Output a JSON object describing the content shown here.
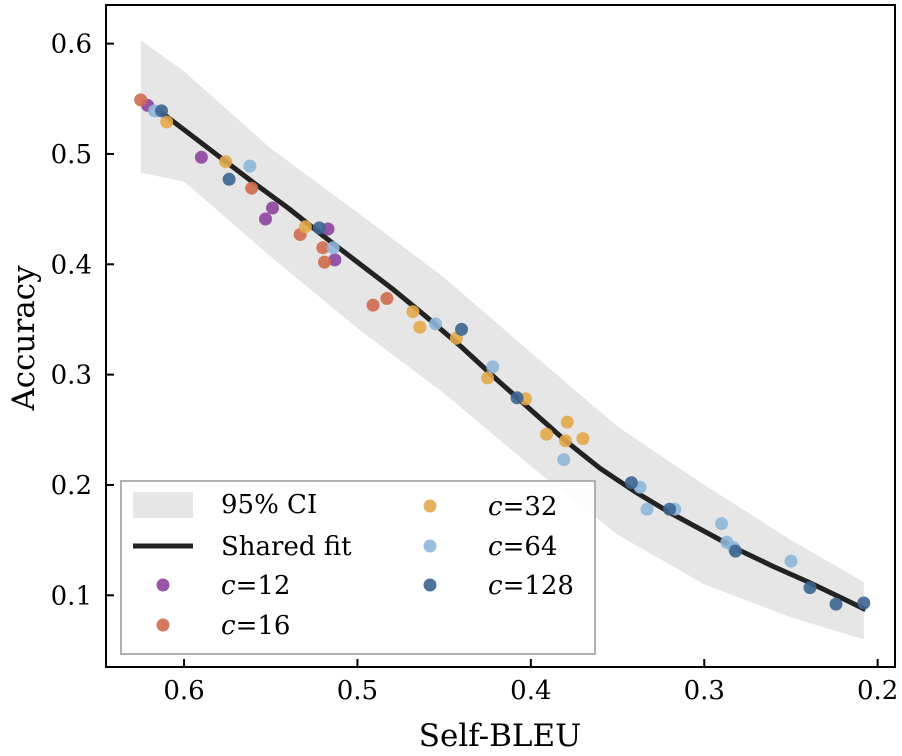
{
  "chart_data": {
    "type": "scatter",
    "xlabel": "Self-BLEU",
    "ylabel": "Accuracy",
    "xlim": [
      0.645,
      0.19
    ],
    "ylim": [
      0.035,
      0.635
    ],
    "x_inverted": true,
    "xticks": [
      0.6,
      0.5,
      0.4,
      0.3,
      0.2
    ],
    "xtick_labels": [
      "0.6",
      "0.5",
      "0.4",
      "0.3",
      "0.2"
    ],
    "yticks": [
      0.1,
      0.2,
      0.3,
      0.4,
      0.5,
      0.6
    ],
    "ytick_labels": [
      "0.1",
      "0.2",
      "0.3",
      "0.4",
      "0.5",
      "0.6"
    ],
    "grid": false,
    "legend_position": "lower-left",
    "confidence_band": {
      "name": "95% CI",
      "color": "#e6e6e6",
      "x": [
        0.625,
        0.6,
        0.55,
        0.5,
        0.45,
        0.4,
        0.35,
        0.3,
        0.25,
        0.208
      ],
      "upper": [
        0.603,
        0.575,
        0.505,
        0.447,
        0.388,
        0.32,
        0.253,
        0.2,
        0.15,
        0.112
      ],
      "lower": [
        0.483,
        0.475,
        0.407,
        0.342,
        0.283,
        0.217,
        0.155,
        0.11,
        0.08,
        0.06
      ]
    },
    "fit": {
      "name": "Shared fit",
      "color": "#222222",
      "x": [
        0.615,
        0.6,
        0.58,
        0.56,
        0.54,
        0.52,
        0.5,
        0.48,
        0.46,
        0.44,
        0.42,
        0.4,
        0.38,
        0.36,
        0.34,
        0.32,
        0.3,
        0.28,
        0.26,
        0.24,
        0.22,
        0.207
      ],
      "y": [
        0.54,
        0.522,
        0.498,
        0.474,
        0.451,
        0.426,
        0.402,
        0.378,
        0.352,
        0.325,
        0.296,
        0.268,
        0.24,
        0.215,
        0.194,
        0.175,
        0.158,
        0.141,
        0.126,
        0.112,
        0.097,
        0.087
      ]
    },
    "series": [
      {
        "name": "c=12",
        "color": "#8e44a0",
        "x": [
          0.621,
          0.59,
          0.553,
          0.549,
          0.517,
          0.513
        ],
        "y": [
          0.544,
          0.497,
          0.441,
          0.451,
          0.432,
          0.404
        ]
      },
      {
        "name": "c=16",
        "color": "#d06a4c",
        "x": [
          0.625,
          0.561,
          0.533,
          0.52,
          0.519,
          0.491,
          0.483
        ],
        "y": [
          0.549,
          0.469,
          0.427,
          0.415,
          0.402,
          0.363,
          0.369
        ]
      },
      {
        "name": "c=32",
        "color": "#e3a94b",
        "x": [
          0.61,
          0.576,
          0.53,
          0.468,
          0.464,
          0.443,
          0.425,
          0.403,
          0.391,
          0.38,
          0.379,
          0.37
        ],
        "y": [
          0.529,
          0.493,
          0.434,
          0.357,
          0.343,
          0.333,
          0.297,
          0.278,
          0.246,
          0.24,
          0.257,
          0.242
        ]
      },
      {
        "name": "c=64",
        "color": "#8db6d9",
        "x": [
          0.617,
          0.562,
          0.514,
          0.455,
          0.422,
          0.381,
          0.337,
          0.333,
          0.317,
          0.29,
          0.287,
          0.283,
          0.25
        ],
        "y": [
          0.539,
          0.489,
          0.415,
          0.346,
          0.307,
          0.223,
          0.198,
          0.178,
          0.178,
          0.165,
          0.148,
          0.143,
          0.131
        ]
      },
      {
        "name": "c=128",
        "color": "#3c6591",
        "x": [
          0.613,
          0.574,
          0.522,
          0.44,
          0.408,
          0.342,
          0.32,
          0.282,
          0.239,
          0.224,
          0.208
        ],
        "y": [
          0.539,
          0.477,
          0.433,
          0.341,
          0.279,
          0.202,
          0.178,
          0.14,
          0.107,
          0.092,
          0.093
        ]
      }
    ]
  }
}
